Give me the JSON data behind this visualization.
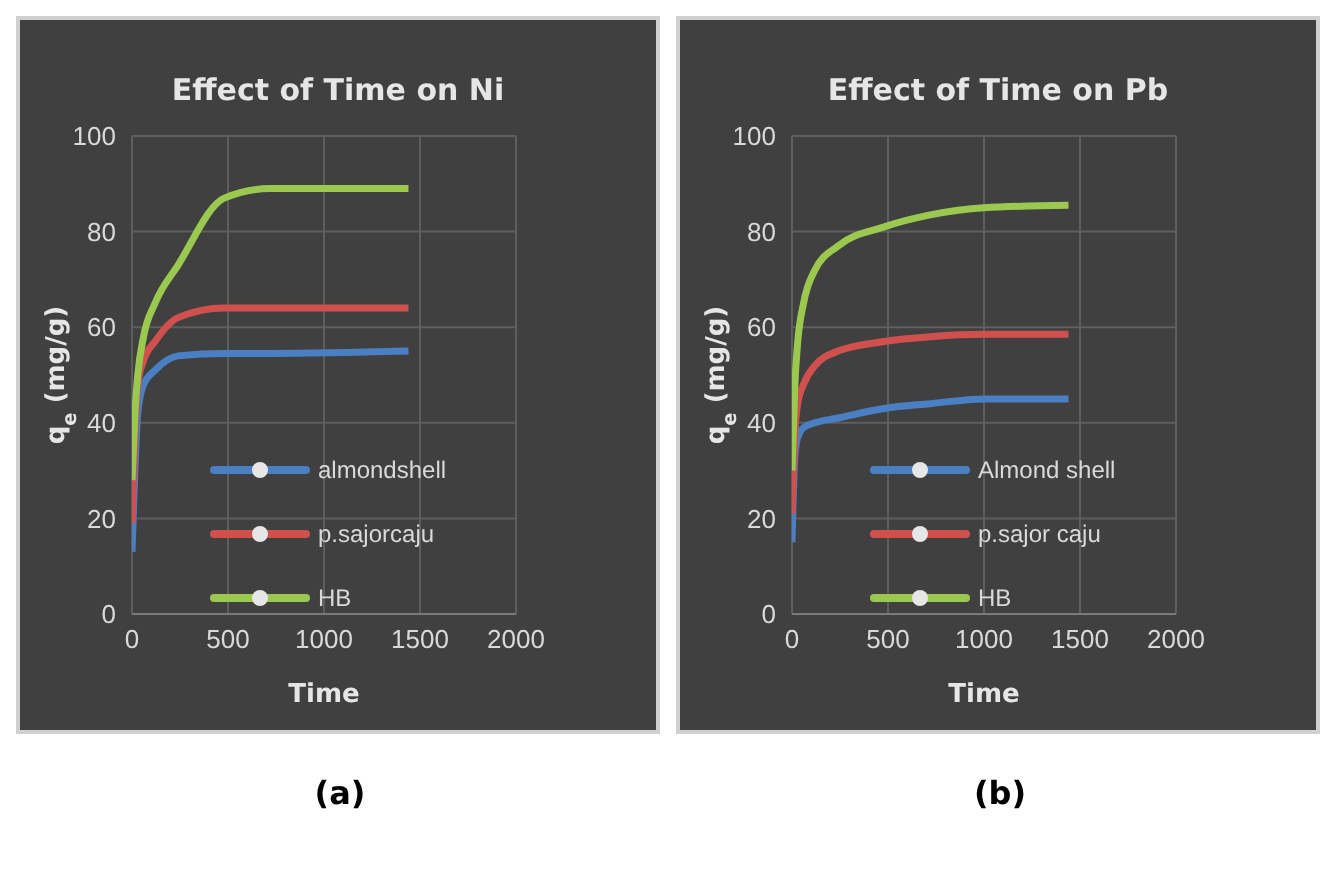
{
  "chart_data": [
    {
      "type": "line",
      "title": "Effect of Time on Ni",
      "xlabel": "Time",
      "ylabel": "q$_{e}$ (mg/g)",
      "annotations": [
        "(a)"
      ],
      "x": [
        0,
        15,
        30,
        60,
        120,
        240,
        480,
        720,
        1440
      ],
      "xlim": [
        0,
        2000
      ],
      "xticks": [
        0,
        500,
        1000,
        1500,
        2000
      ],
      "ylim": [
        0,
        100
      ],
      "yticks": [
        0,
        20,
        40,
        60,
        80,
        100
      ],
      "grid": true,
      "legend": "bottom",
      "marker": "none",
      "line_style": "solid",
      "series": [
        {
          "name": "almondshell",
          "color": "#4a7fc4",
          "values": [
            13,
            30,
            42,
            48,
            51,
            54,
            54.5,
            54.5,
            55
          ]
        },
        {
          "name": "p.sajorcaju",
          "color": "#d0504d",
          "values": [
            19,
            38,
            48,
            53,
            57,
            62,
            64,
            64,
            64
          ]
        },
        {
          "name": "HB",
          "color": "#9bc94f",
          "values": [
            28,
            42,
            50,
            58,
            65,
            73,
            87,
            89,
            89
          ]
        }
      ]
    },
    {
      "type": "line",
      "title": "Effect of Time on Pb",
      "xlabel": "Time",
      "ylabel": "q$_{e}$ (mg/g)",
      "annotations": [
        "(b)"
      ],
      "x": [
        0,
        15,
        30,
        60,
        120,
        240,
        480,
        720,
        1000,
        1440
      ],
      "xlim": [
        0,
        2000
      ],
      "xticks": [
        0,
        500,
        1000,
        1500,
        2000
      ],
      "ylim": [
        0,
        100
      ],
      "yticks": [
        0,
        20,
        40,
        60,
        80,
        100
      ],
      "grid": true,
      "legend": "bottom",
      "marker": "none",
      "line_style": "solid",
      "series": [
        {
          "name": "Almond shell",
          "color": "#4a7fc4",
          "values": [
            15,
            33,
            37,
            39,
            40,
            41,
            43,
            44,
            45,
            45
          ]
        },
        {
          "name": "p.sajor caju",
          "color": "#d0504d",
          "values": [
            21,
            38,
            44,
            48,
            52,
            55,
            57,
            58,
            58.5,
            58.5
          ]
        },
        {
          "name": "HB",
          "color": "#9bc94f",
          "values": [
            30,
            48,
            57,
            65,
            72,
            77,
            81,
            83.5,
            85,
            85.5
          ]
        }
      ]
    }
  ]
}
